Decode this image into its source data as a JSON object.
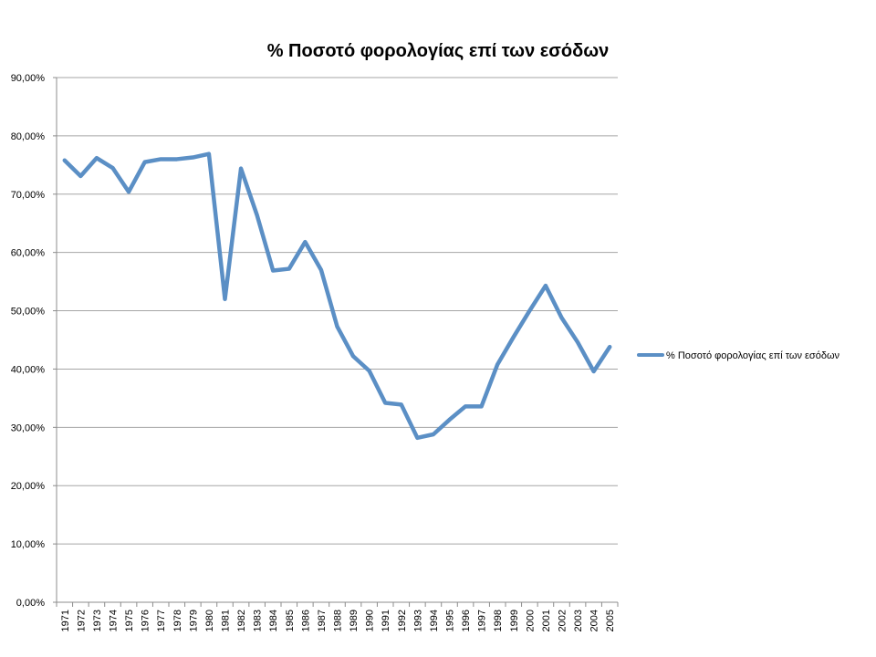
{
  "chart_data": {
    "type": "line",
    "title": "% Ποσοτό φορολογίας επί των εσόδων",
    "xlabel": "",
    "ylabel": "",
    "ylim": [
      0,
      90
    ],
    "y_tick_values": [
      0,
      10,
      20,
      30,
      40,
      50,
      60,
      70,
      80,
      90
    ],
    "y_tick_labels": [
      "0,00%",
      "10,00%",
      "20,00%",
      "30,00%",
      "40,00%",
      "50,00%",
      "60,00%",
      "70,00%",
      "80,00%",
      "90,00%"
    ],
    "categories": [
      "1971",
      "1972",
      "1973",
      "1974",
      "1975",
      "1976",
      "1977",
      "1978",
      "1979",
      "1980",
      "1981",
      "1982",
      "1983",
      "1984",
      "1985",
      "1986",
      "1987",
      "1988",
      "1989",
      "1990",
      "1991",
      "1992",
      "1993",
      "1994",
      "1995",
      "1996",
      "1997",
      "1998",
      "1999",
      "2000",
      "2001",
      "2002",
      "2003",
      "2004",
      "2005"
    ],
    "series": [
      {
        "name": "% Ποσοτό φορολογίας επί των εσόδων",
        "color": "#5b8fc5",
        "values": [
          75.8,
          73.1,
          76.2,
          74.5,
          70.4,
          75.5,
          76.0,
          76.0,
          76.3,
          76.9,
          52.0,
          74.4,
          66.4,
          56.9,
          57.2,
          61.8,
          57.0,
          47.3,
          42.2,
          39.7,
          34.2,
          33.9,
          28.2,
          28.8,
          31.3,
          33.6,
          33.6,
          40.8,
          45.5,
          50.0,
          54.3,
          48.8,
          44.6,
          39.6,
          43.8
        ]
      }
    ],
    "grid": true,
    "legend_position": "right"
  }
}
